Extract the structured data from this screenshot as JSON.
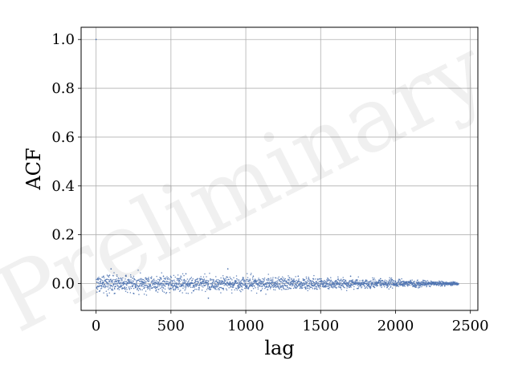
{
  "watermark": "Preliminary",
  "chart_data": {
    "type": "scatter",
    "title": "",
    "xlabel": "lag",
    "ylabel": "ACF",
    "xlim": [
      -100,
      2550
    ],
    "ylim": [
      -0.11,
      1.05
    ],
    "xticks": [
      0,
      500,
      1000,
      1500,
      2000,
      2500
    ],
    "yticks": [
      0.0,
      0.2,
      0.4,
      0.6,
      0.8,
      1.0
    ],
    "xtick_labels": [
      "0",
      "500",
      "1000",
      "1500",
      "2000",
      "2500"
    ],
    "ytick_labels": [
      "0.0",
      "0.2",
      "0.4",
      "0.6",
      "0.8",
      "1.0"
    ],
    "grid": true,
    "marker_color": "#4c72b0",
    "series": [
      {
        "lag_max": 2420,
        "lag0_value": 1.0,
        "trend": "noise around 0 with amplitude shrinking toward zero at large lag",
        "x": [
          0,
          10,
          25,
          50,
          75,
          100,
          125,
          150,
          175,
          200,
          250,
          300,
          350,
          400,
          450,
          500,
          550,
          600,
          650,
          700,
          750,
          800,
          850,
          880,
          900,
          950,
          1000,
          1050,
          1100,
          1150,
          1200,
          1250,
          1300,
          1350,
          1400,
          1450,
          1500,
          1550,
          1600,
          1650,
          1700,
          1750,
          1800,
          1850,
          1900,
          1950,
          2000,
          2050,
          2100,
          2150,
          2200,
          2250,
          2300,
          2350,
          2400,
          2420
        ],
        "y": [
          1.0,
          0.02,
          -0.03,
          0.03,
          -0.05,
          0.06,
          -0.04,
          0.01,
          -0.02,
          0.03,
          -0.04,
          0.02,
          0.01,
          -0.03,
          0.03,
          -0.02,
          0.02,
          0.04,
          -0.03,
          0.02,
          -0.06,
          0.01,
          -0.02,
          0.06,
          0.02,
          -0.02,
          0.01,
          0.03,
          -0.03,
          0.02,
          -0.01,
          0.01,
          -0.02,
          0.03,
          -0.02,
          0.02,
          0.01,
          -0.02,
          0.01,
          -0.01,
          0.03,
          -0.02,
          0.01,
          -0.01,
          0.02,
          -0.01,
          0.01,
          -0.01,
          0.01,
          0.005,
          -0.005,
          0.005,
          0.0,
          0.003,
          0.0,
          0.0
        ]
      }
    ]
  }
}
